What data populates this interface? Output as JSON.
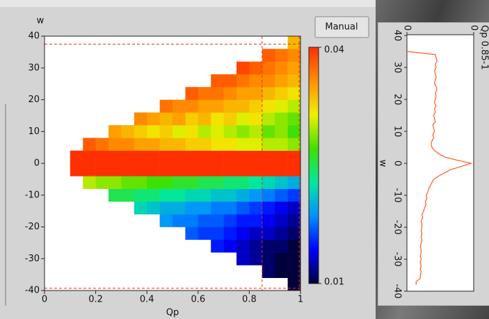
{
  "button": {
    "label": "Manual"
  },
  "chart_data": [
    {
      "type": "heatmap",
      "x_label": "Qp",
      "y_label": "w",
      "xlim": [
        0,
        1
      ],
      "xticks": [
        0,
        0.2,
        0.4,
        0.6,
        0.8,
        1
      ],
      "ylim": [
        -40,
        40
      ],
      "yticks": [
        -40,
        -30,
        -20,
        -10,
        0,
        10,
        20,
        30,
        40
      ],
      "xbins": [
        0.1,
        0.15,
        0.2,
        0.25,
        0.3,
        0.35,
        0.4,
        0.45,
        0.5,
        0.55,
        0.6,
        0.65,
        0.7,
        0.75,
        0.8,
        0.85,
        0.9,
        0.95,
        1
      ],
      "ybins": [
        -40,
        -36,
        -32,
        -28,
        -24,
        -20,
        -16,
        -12,
        -8,
        -4,
        0,
        4,
        8,
        12,
        16,
        20,
        24,
        28,
        32,
        36,
        40
      ],
      "values": [
        [
          null,
          null,
          null,
          null,
          null,
          null,
          null,
          null,
          null,
          null,
          null,
          null,
          null,
          null,
          null,
          null,
          null,
          0.01
        ],
        [
          null,
          null,
          null,
          null,
          null,
          null,
          null,
          null,
          null,
          null,
          null,
          null,
          null,
          null,
          null,
          0.011,
          0.01,
          0.01
        ],
        [
          null,
          null,
          null,
          null,
          null,
          null,
          null,
          null,
          null,
          null,
          null,
          null,
          null,
          0.013,
          0.012,
          0.011,
          0.01,
          0.01
        ],
        [
          null,
          null,
          null,
          null,
          null,
          null,
          null,
          null,
          null,
          null,
          null,
          0.015,
          0.014,
          0.013,
          0.012,
          0.011,
          0.011,
          0.01
        ],
        [
          null,
          null,
          null,
          null,
          null,
          null,
          null,
          null,
          null,
          0.017,
          0.016,
          0.016,
          0.015,
          0.014,
          0.013,
          0.013,
          0.012,
          0.011
        ],
        [
          null,
          null,
          null,
          null,
          null,
          null,
          null,
          0.019,
          0.018,
          0.018,
          0.017,
          0.017,
          0.016,
          0.015,
          0.015,
          0.014,
          0.013,
          0.012
        ],
        [
          null,
          null,
          null,
          null,
          null,
          0.022,
          0.021,
          0.02,
          0.02,
          0.019,
          0.019,
          0.018,
          0.018,
          0.017,
          0.016,
          0.015,
          0.014,
          0.013
        ],
        [
          null,
          null,
          null,
          0.025,
          0.025,
          0.024,
          0.024,
          0.023,
          0.023,
          0.022,
          0.022,
          0.021,
          0.021,
          0.02,
          0.019,
          0.018,
          0.017,
          0.016
        ],
        [
          null,
          0.03,
          0.029,
          0.029,
          0.028,
          0.028,
          0.027,
          0.027,
          0.026,
          0.026,
          0.025,
          0.025,
          0.024,
          0.024,
          0.023,
          0.022,
          0.021,
          0.02
        ],
        [
          0.04,
          0.04,
          0.04,
          0.04,
          0.04,
          0.04,
          0.04,
          0.04,
          0.04,
          0.04,
          0.04,
          0.04,
          0.04,
          0.04,
          0.04,
          0.04,
          0.04,
          0.04
        ],
        [
          0.04,
          0.04,
          0.04,
          0.04,
          0.04,
          0.04,
          0.04,
          0.04,
          0.04,
          0.04,
          0.04,
          0.04,
          0.04,
          0.04,
          0.04,
          0.04,
          0.04,
          0.04
        ],
        [
          null,
          0.038,
          0.037,
          0.036,
          0.036,
          0.035,
          0.035,
          0.034,
          0.034,
          0.033,
          0.033,
          0.032,
          0.032,
          0.031,
          0.031,
          0.03,
          0.03,
          0.029
        ],
        [
          null,
          null,
          null,
          0.035,
          0.034,
          0.033,
          0.032,
          0.033,
          0.031,
          0.032,
          0.03,
          0.031,
          0.03,
          0.029,
          0.03,
          0.028,
          0.029,
          0.027
        ],
        [
          null,
          null,
          null,
          null,
          null,
          0.036,
          0.035,
          0.034,
          0.035,
          0.033,
          0.034,
          0.032,
          0.033,
          0.031,
          0.032,
          0.03,
          0.029,
          0.028
        ],
        [
          null,
          null,
          null,
          null,
          null,
          null,
          null,
          0.037,
          0.036,
          0.036,
          0.035,
          0.035,
          0.034,
          0.034,
          0.033,
          0.032,
          0.031,
          0.03
        ],
        [
          null,
          null,
          null,
          null,
          null,
          null,
          null,
          null,
          null,
          0.038,
          0.037,
          0.037,
          0.036,
          0.035,
          0.035,
          0.034,
          0.033,
          0.032
        ],
        [
          null,
          null,
          null,
          null,
          null,
          null,
          null,
          null,
          null,
          null,
          null,
          0.038,
          0.038,
          0.037,
          0.036,
          0.036,
          0.035,
          0.034
        ],
        [
          null,
          null,
          null,
          null,
          null,
          null,
          null,
          null,
          null,
          null,
          null,
          null,
          null,
          0.039,
          0.038,
          0.037,
          0.036,
          0.035
        ],
        [
          null,
          null,
          null,
          null,
          null,
          null,
          null,
          null,
          null,
          null,
          null,
          null,
          null,
          null,
          null,
          0.038,
          0.037,
          0.036
        ],
        [
          null,
          null,
          null,
          null,
          null,
          null,
          null,
          null,
          null,
          null,
          null,
          null,
          null,
          null,
          null,
          null,
          null,
          0.034
        ]
      ],
      "colormap": [
        "#00003c",
        "#0000ff",
        "#0090ff",
        "#00e8a0",
        "#40e000",
        "#f0f000",
        "#ff9000",
        "#ff3000"
      ],
      "colorbar": {
        "lim": [
          0.01,
          0.04
        ],
        "ticks": [
          0.01,
          0.04
        ]
      },
      "hlines": [
        37.5,
        -39.3
      ],
      "vlines": [
        0.85,
        0.995
      ],
      "ref_color": "#e03020"
    },
    {
      "type": "line",
      "orientation": "vertical",
      "title": "Qp 0.85-1",
      "y_label": "w",
      "ylim": [
        -40,
        40
      ],
      "yticks": [
        -40,
        -30,
        -20,
        -10,
        0,
        10,
        20,
        30,
        40
      ],
      "xlim": [
        0,
        0.08
      ],
      "xticks": [
        0,
        {
          "value": 0.08,
          "label": "0"
        }
      ],
      "color": "#ff5a1e",
      "x": [
        -38,
        -37,
        -36,
        -35,
        -34,
        -33,
        -32,
        -31,
        -30,
        -29,
        -28,
        -27,
        -26,
        -25,
        -24,
        -23,
        -22,
        -21,
        -20,
        -19,
        -18,
        -17,
        -16,
        -15,
        -14,
        -13,
        -12,
        -11,
        -10,
        -9,
        -8,
        -7,
        -6,
        -5,
        -4,
        -3,
        -2,
        -1,
        0,
        1,
        2,
        3,
        4,
        5,
        6,
        7,
        8,
        9,
        10,
        11,
        12,
        13,
        14,
        15,
        16,
        17,
        18,
        19,
        20,
        21,
        22,
        23,
        24,
        25,
        26,
        27,
        28,
        29,
        30,
        31,
        32,
        33,
        34,
        35
      ],
      "values": [
        0.011,
        0.011,
        0.016,
        0.016,
        0.017,
        0.016,
        0.017,
        0.016,
        0.017,
        0.016,
        0.017,
        0.017,
        0.016,
        0.017,
        0.018,
        0.017,
        0.018,
        0.017,
        0.018,
        0.018,
        0.017,
        0.019,
        0.018,
        0.02,
        0.021,
        0.023,
        0.022,
        0.024,
        0.023,
        0.025,
        0.026,
        0.028,
        0.03,
        0.032,
        0.038,
        0.045,
        0.052,
        0.065,
        0.077,
        0.06,
        0.045,
        0.038,
        0.033,
        0.03,
        0.029,
        0.03,
        0.032,
        0.031,
        0.033,
        0.032,
        0.031,
        0.034,
        0.033,
        0.032,
        0.034,
        0.033,
        0.035,
        0.033,
        0.034,
        0.035,
        0.034,
        0.036,
        0.035,
        0.033,
        0.034,
        0.035,
        0.034,
        0.033,
        0.035,
        0.034,
        0.036,
        0.035,
        0.034,
        0
      ]
    }
  ]
}
